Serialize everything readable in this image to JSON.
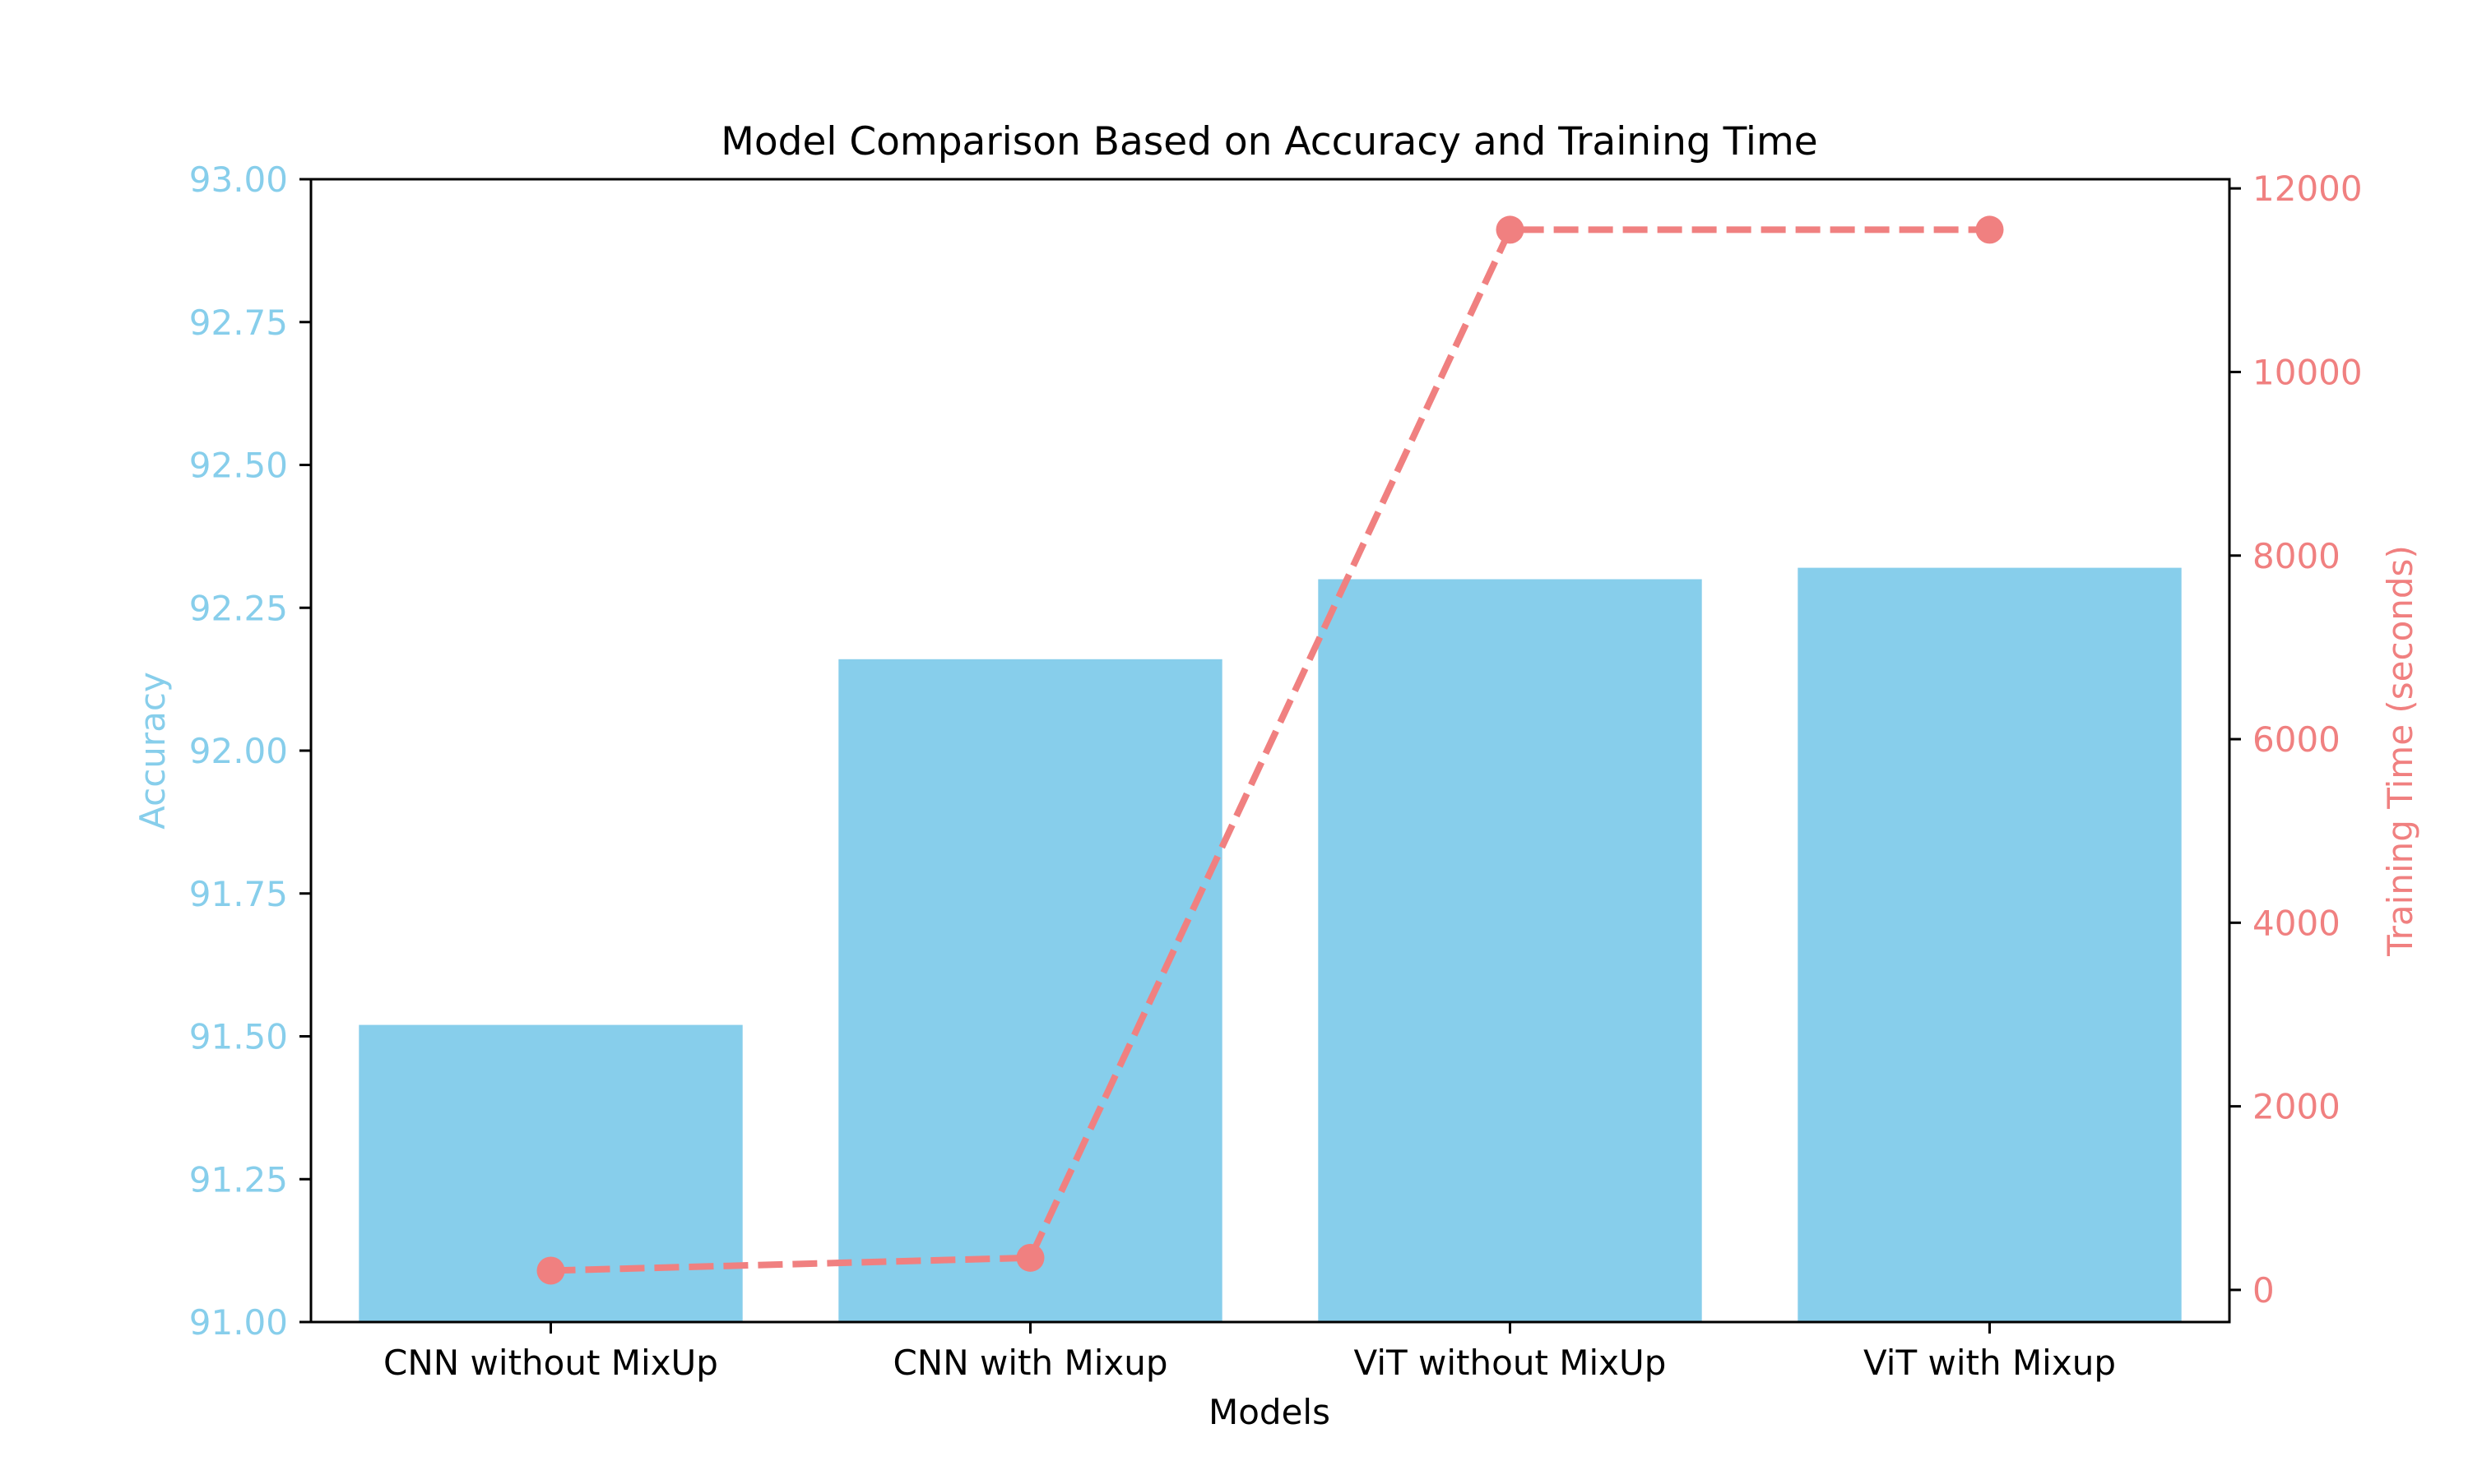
{
  "chart_data": {
    "type": "bar+line",
    "title": "Model Comparison Based on Accuracy and Training Time",
    "xlabel": "Models",
    "categories": [
      "CNN without MixUp",
      "CNN with Mixup",
      "ViT without MixUp",
      "ViT with Mixup"
    ],
    "series": [
      {
        "name": "Accuracy",
        "kind": "bar",
        "axis": "left",
        "values": [
          91.52,
          92.16,
          92.3,
          92.32
        ]
      },
      {
        "name": "Training Time (seconds)",
        "kind": "line",
        "axis": "right",
        "style": "dashed",
        "marker": "circle",
        "values": [
          210,
          350,
          11550,
          11550
        ]
      }
    ],
    "left_axis": {
      "label": "Accuracy",
      "ylim": [
        91.0,
        93.0
      ],
      "ticks": [
        91.0,
        91.25,
        91.5,
        91.75,
        92.0,
        92.25,
        92.5,
        92.75,
        93.0
      ],
      "tick_labels": [
        "91.00",
        "91.25",
        "91.50",
        "91.75",
        "92.00",
        "92.25",
        "92.50",
        "92.75",
        "93.00"
      ]
    },
    "right_axis": {
      "label": "Training Time (seconds)",
      "ylim": [
        -350,
        12100
      ],
      "ticks": [
        0,
        2000,
        4000,
        6000,
        8000,
        10000,
        12000
      ],
      "tick_labels": [
        "0",
        "2000",
        "4000",
        "6000",
        "8000",
        "10000",
        "12000"
      ]
    },
    "colors": {
      "bar": "#87ceeb",
      "line": "#f08080",
      "axis": "#000000",
      "left_axis_text": "#87ceeb",
      "right_axis_text": "#f08080"
    },
    "grid": false,
    "legend": "none"
  }
}
